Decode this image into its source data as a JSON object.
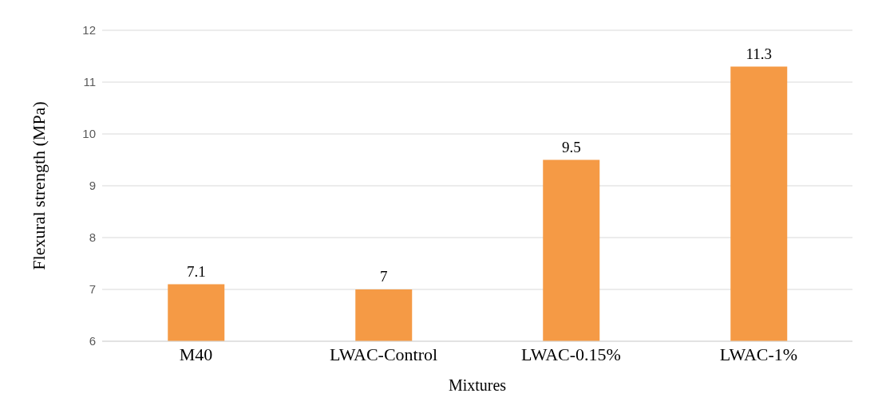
{
  "chart_data": {
    "type": "bar",
    "xlabel": "Mixtures",
    "ylabel": "Flexural strength (MPa)",
    "categories": [
      "M40",
      "LWAC-Control",
      "LWAC-0.15%",
      "LWAC-1%"
    ],
    "values": [
      7.1,
      7,
      9.5,
      11.3
    ],
    "color": "#f59a45",
    "ylim": [
      6,
      12
    ],
    "yticks": [
      6,
      7,
      8,
      9,
      10,
      11,
      12
    ],
    "grid": "y",
    "data_labels": true
  }
}
